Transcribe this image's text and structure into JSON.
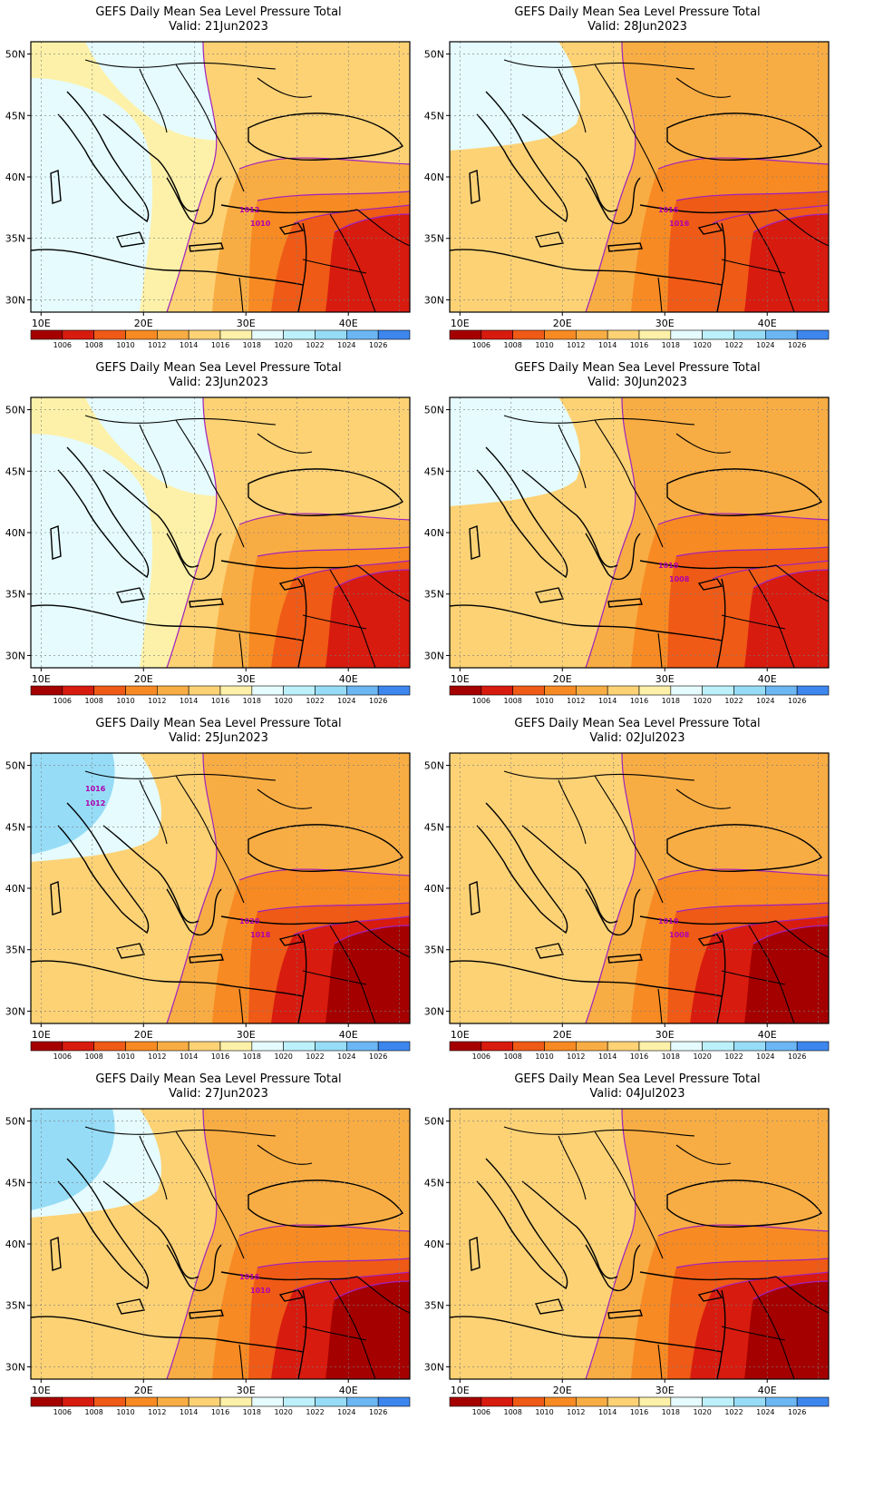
{
  "palette": {
    "levels": [
      "1006",
      "1008",
      "1010",
      "1012",
      "1014",
      "1016",
      "1018",
      "1020",
      "1022",
      "1024",
      "1026"
    ],
    "colors": [
      "#a50000",
      "#d81b0f",
      "#ef5a16",
      "#f78a23",
      "#f8ad44",
      "#fcd275",
      "#fdf1a9",
      "#e5fbfe",
      "#bcf1fb",
      "#96dcf6",
      "#6bb6f3",
      "#3d86ee"
    ],
    "contour_color": "#a020c0"
  },
  "axes": {
    "x_ticks": [
      "10E",
      "20E",
      "30E",
      "40E"
    ],
    "y_ticks": [
      "50N",
      "45N",
      "40N",
      "35N",
      "30N"
    ]
  },
  "panels": [
    {
      "title": "GEFS Daily Mean Sea Level Pressure Total",
      "valid": "Valid:  21Jun2023",
      "scheme": "a",
      "labels": [
        "1012",
        "1010"
      ]
    },
    {
      "title": "GEFS Daily Mean Sea Level Pressure Total",
      "valid": "Valid:  28Jun2023",
      "scheme": "b",
      "labels": [
        "1016",
        "1016"
      ]
    },
    {
      "title": "GEFS Daily Mean Sea Level Pressure Total",
      "valid": "Valid:  23Jun2023",
      "scheme": "a",
      "labels": []
    },
    {
      "title": "GEFS Daily Mean Sea Level Pressure Total",
      "valid": "Valid:  30Jun2023",
      "scheme": "b",
      "labels": [
        "1010",
        "1008"
      ]
    },
    {
      "title": "GEFS Daily Mean Sea Level Pressure Total",
      "valid": "Valid:  25Jun2023",
      "scheme": "c",
      "labels": [
        "1020",
        "1018",
        "1016",
        "1012"
      ]
    },
    {
      "title": "GEFS Daily Mean Sea Level Pressure Total",
      "valid": "Valid:  02Jul2023",
      "scheme": "d",
      "labels": [
        "1010",
        "1008"
      ]
    },
    {
      "title": "GEFS Daily Mean Sea Level Pressure Total",
      "valid": "Valid:  27Jun2023",
      "scheme": "c",
      "labels": [
        "1016",
        "1010"
      ]
    },
    {
      "title": "GEFS Daily Mean Sea Level Pressure Total",
      "valid": "Valid:  04Jul2023",
      "scheme": "d",
      "labels": []
    }
  ]
}
